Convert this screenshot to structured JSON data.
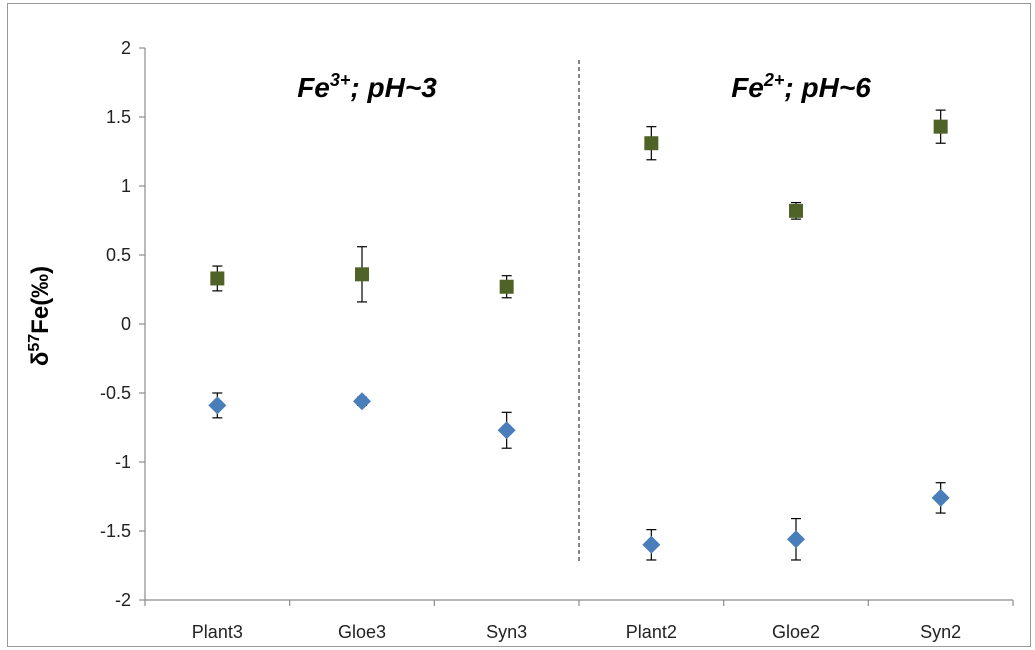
{
  "chart_data": {
    "type": "scatter",
    "categories": [
      "Plant3",
      "Gloe3",
      "Syn3",
      "Plant2",
      "Gloe2",
      "Syn2"
    ],
    "ylabel": "δ57Fe(‰)",
    "ylim": [
      -2,
      2
    ],
    "yticks": [
      -2,
      -1.5,
      -1,
      -0.5,
      0,
      0.5,
      1,
      1.5,
      2
    ],
    "grid": false,
    "divider_between": [
      "Syn3",
      "Plant2"
    ],
    "annotations": [
      {
        "base": "Fe",
        "sup": "3+",
        "rest": "; pH~3"
      },
      {
        "base": "Fe",
        "sup": "2+",
        "rest": "; pH~6"
      }
    ],
    "series": [
      {
        "marker": "square",
        "color": "#4f6228",
        "values": [
          0.33,
          0.36,
          0.27,
          1.31,
          0.82,
          1.43
        ],
        "errors": [
          0.09,
          0.2,
          0.08,
          0.12,
          0.06,
          0.12
        ]
      },
      {
        "marker": "diamond",
        "color": "#4a7ebb",
        "values": [
          -0.59,
          -0.56,
          -0.77,
          -1.6,
          -1.56,
          -1.26
        ],
        "errors": [
          0.09,
          0.03,
          0.13,
          0.11,
          0.15,
          0.11
        ]
      }
    ]
  }
}
